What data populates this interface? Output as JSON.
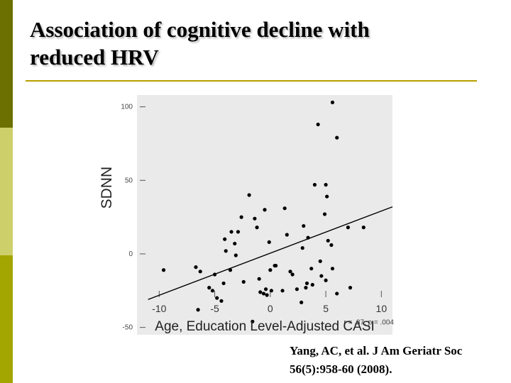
{
  "slide": {
    "title_line1": "Association of cognitive decline with",
    "title_line2": "reduced HRV",
    "citation_line1": "Yang, AC, et al. J Am Geriatr Soc",
    "citation_line2": "56(5):958-60 (2008).",
    "accent_colors": [
      "#6b7000",
      "#cdd06a",
      "#a3a500",
      "#b8a000"
    ]
  },
  "chart_data": {
    "type": "scatter",
    "title": "",
    "xlabel": "Age, Education Level-Adjusted CASI",
    "ylabel": "SDNN",
    "xlim": [
      -12,
      11
    ],
    "ylim": [
      -55,
      108
    ],
    "xticks": [
      -10,
      -5,
      0,
      5,
      10
    ],
    "yticks": [
      100,
      50,
      0,
      -50
    ],
    "annotation": "r = .37, p = .004",
    "grid": false,
    "regression_line": {
      "x": [
        -11,
        11
      ],
      "y": [
        -31,
        32
      ]
    },
    "points": [
      {
        "x": -9.6,
        "y": -11
      },
      {
        "x": -6.7,
        "y": -9
      },
      {
        "x": -6.3,
        "y": -12
      },
      {
        "x": -6.5,
        "y": -38
      },
      {
        "x": -5.5,
        "y": -23
      },
      {
        "x": -5.2,
        "y": -25
      },
      {
        "x": -5.0,
        "y": -14
      },
      {
        "x": -4.8,
        "y": -30
      },
      {
        "x": -4.4,
        "y": -32
      },
      {
        "x": -4.2,
        "y": -20
      },
      {
        "x": -4.1,
        "y": 10
      },
      {
        "x": -4.0,
        "y": 2
      },
      {
        "x": -3.6,
        "y": -11
      },
      {
        "x": -3.5,
        "y": 15
      },
      {
        "x": -3.2,
        "y": 7
      },
      {
        "x": -3.1,
        "y": -1
      },
      {
        "x": -2.9,
        "y": 15
      },
      {
        "x": -2.6,
        "y": 25
      },
      {
        "x": -2.4,
        "y": -19
      },
      {
        "x": -1.9,
        "y": 40
      },
      {
        "x": -1.6,
        "y": -46
      },
      {
        "x": -1.4,
        "y": 24
      },
      {
        "x": -1.2,
        "y": 18
      },
      {
        "x": -1.0,
        "y": -17
      },
      {
        "x": -0.9,
        "y": -26
      },
      {
        "x": -0.6,
        "y": -27
      },
      {
        "x": -0.5,
        "y": 30
      },
      {
        "x": -0.4,
        "y": -24
      },
      {
        "x": -0.3,
        "y": -28
      },
      {
        "x": -0.1,
        "y": 8
      },
      {
        "x": 0.0,
        "y": -11
      },
      {
        "x": 0.1,
        "y": -25
      },
      {
        "x": 0.4,
        "y": -8
      },
      {
        "x": 0.5,
        "y": -8
      },
      {
        "x": 1.1,
        "y": -25
      },
      {
        "x": 1.3,
        "y": 31
      },
      {
        "x": 1.5,
        "y": 13
      },
      {
        "x": 1.8,
        "y": -12
      },
      {
        "x": 2.0,
        "y": -14
      },
      {
        "x": 2.4,
        "y": -24
      },
      {
        "x": 2.8,
        "y": -33
      },
      {
        "x": 2.9,
        "y": 4
      },
      {
        "x": 3.0,
        "y": 19
      },
      {
        "x": 3.2,
        "y": -23
      },
      {
        "x": 3.3,
        "y": -20
      },
      {
        "x": 3.4,
        "y": 11
      },
      {
        "x": 3.7,
        "y": -10
      },
      {
        "x": 3.8,
        "y": -21
      },
      {
        "x": 4.0,
        "y": 47
      },
      {
        "x": 4.3,
        "y": 88
      },
      {
        "x": 4.5,
        "y": -5
      },
      {
        "x": 4.6,
        "y": -15
      },
      {
        "x": 4.9,
        "y": 27
      },
      {
        "x": 5.0,
        "y": -18
      },
      {
        "x": 5.0,
        "y": 47
      },
      {
        "x": 5.1,
        "y": 39
      },
      {
        "x": 5.2,
        "y": 9
      },
      {
        "x": 5.5,
        "y": 6
      },
      {
        "x": 5.6,
        "y": -10
      },
      {
        "x": 5.6,
        "y": 103
      },
      {
        "x": 6.0,
        "y": -27
      },
      {
        "x": 6.0,
        "y": 79
      },
      {
        "x": 7.0,
        "y": 18
      },
      {
        "x": 7.2,
        "y": -23
      },
      {
        "x": 8.4,
        "y": 18
      }
    ]
  }
}
